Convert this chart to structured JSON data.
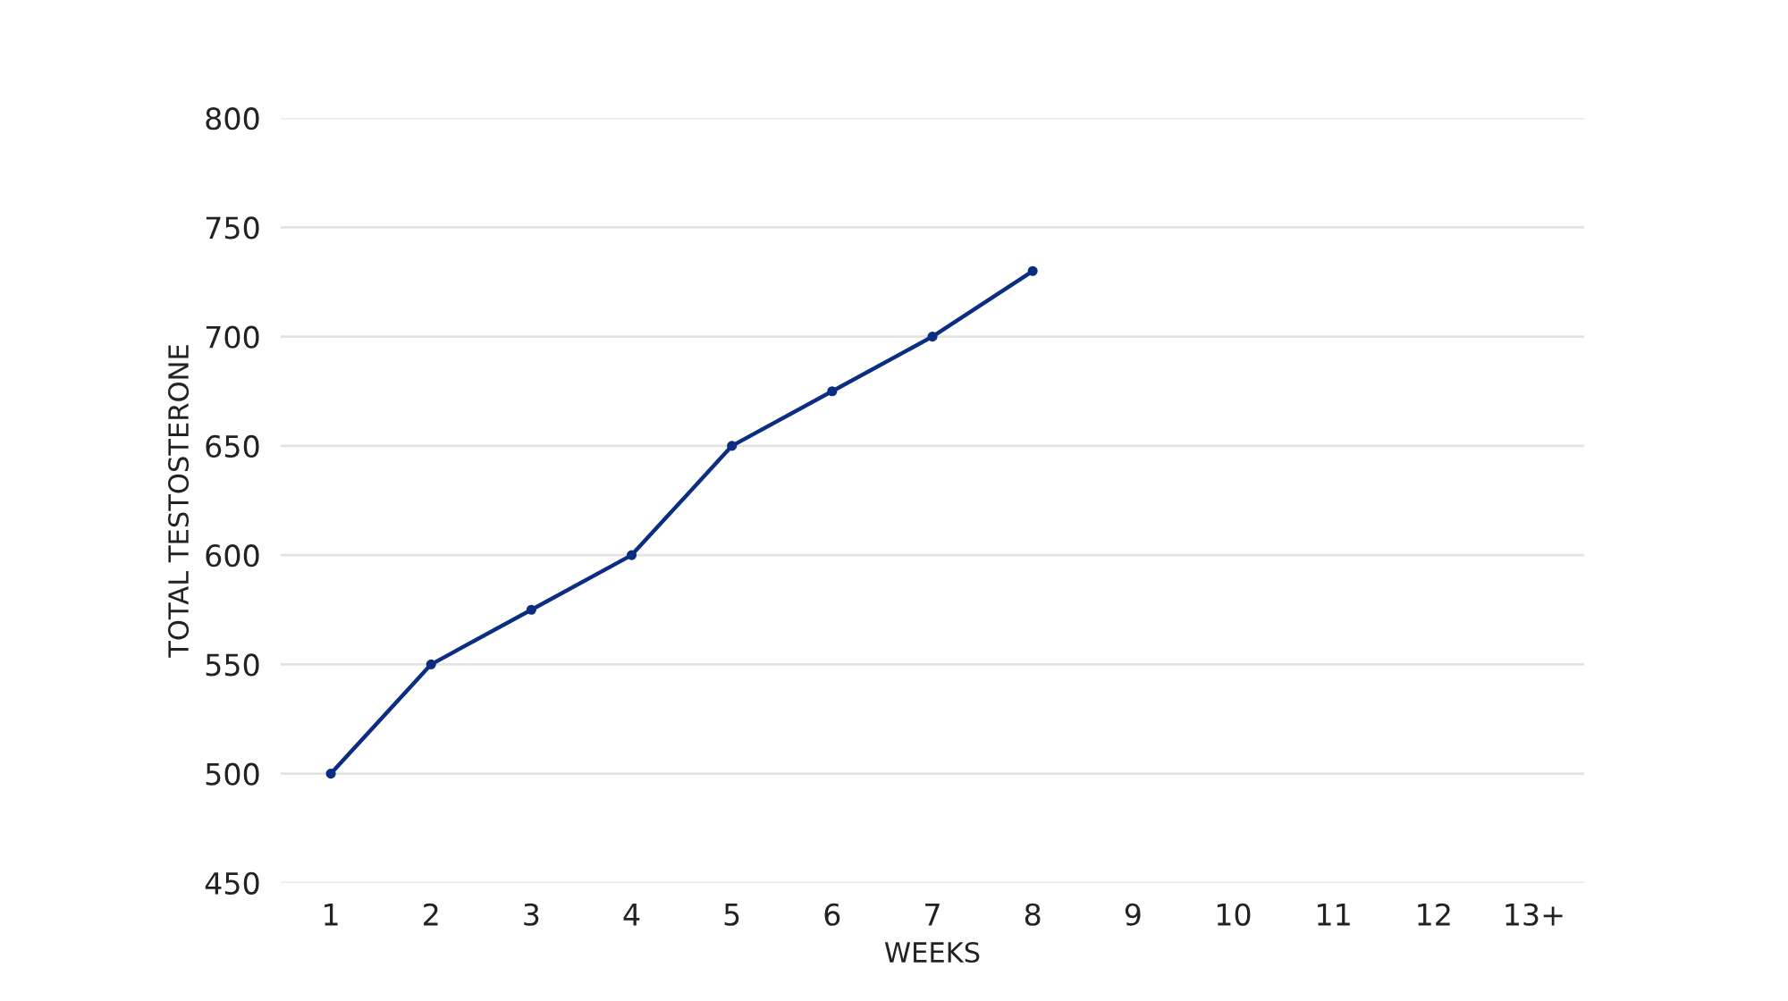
{
  "chart_data": {
    "type": "line",
    "xlabel": "WEEKS",
    "ylabel": "TOTAL TESTOSTERONE",
    "categories": [
      "1",
      "2",
      "3",
      "4",
      "5",
      "6",
      "7",
      "8",
      "9",
      "10",
      "11",
      "12",
      "13+"
    ],
    "series": [
      {
        "color": "#0b2d82",
        "values": [
          500,
          550,
          575,
          600,
          650,
          675,
          700,
          730,
          null,
          null,
          null,
          null,
          null
        ]
      }
    ],
    "ylim": [
      450,
      800
    ],
    "yticks": [
      450,
      500,
      550,
      600,
      650,
      700,
      750,
      800
    ],
    "grid": "y",
    "marker": "circle",
    "line_style": "solid"
  }
}
